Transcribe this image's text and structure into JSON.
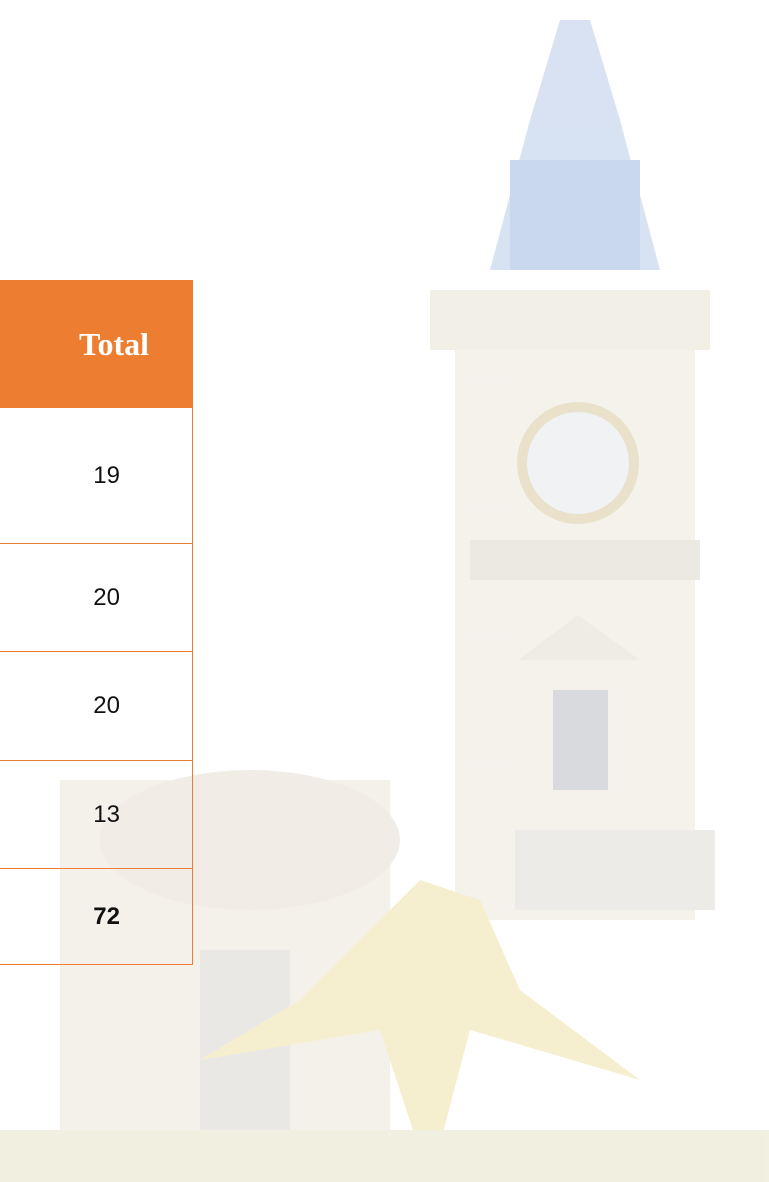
{
  "table": {
    "header": [
      "Total"
    ],
    "rows": [
      [
        19
      ],
      [
        20
      ],
      [
        20
      ],
      [
        13
      ],
      [
        72
      ]
    ]
  }
}
